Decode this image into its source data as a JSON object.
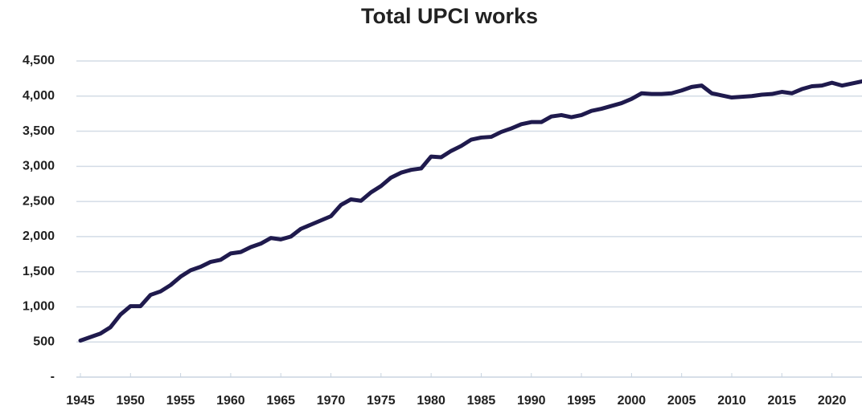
{
  "chart_data": {
    "type": "line",
    "title": "Total UPCI works",
    "x": [
      1945,
      1946,
      1947,
      1948,
      1949,
      1950,
      1951,
      1952,
      1953,
      1954,
      1955,
      1956,
      1957,
      1958,
      1959,
      1960,
      1961,
      1962,
      1963,
      1964,
      1965,
      1966,
      1967,
      1968,
      1969,
      1970,
      1971,
      1972,
      1973,
      1974,
      1975,
      1976,
      1977,
      1978,
      1979,
      1980,
      1981,
      1982,
      1983,
      1984,
      1985,
      1986,
      1987,
      1988,
      1989,
      1990,
      1991,
      1992,
      1993,
      1994,
      1995,
      1996,
      1997,
      1998,
      1999,
      2000,
      2001,
      2002,
      2003,
      2004,
      2005,
      2006,
      2007,
      2008,
      2009,
      2010,
      2011,
      2012,
      2013,
      2014,
      2015,
      2016,
      2017,
      2018,
      2019,
      2020,
      2021,
      2022,
      2023
    ],
    "series": [
      {
        "name": "Total UPCI works",
        "color": "#1f1a4d",
        "values": [
          520,
          570,
          620,
          710,
          890,
          1010,
          1010,
          1170,
          1220,
          1310,
          1430,
          1520,
          1570,
          1640,
          1670,
          1760,
          1780,
          1850,
          1900,
          1980,
          1960,
          2000,
          2110,
          2170,
          2230,
          2290,
          2450,
          2530,
          2510,
          2630,
          2720,
          2840,
          2910,
          2950,
          2970,
          3140,
          3130,
          3220,
          3290,
          3380,
          3410,
          3420,
          3490,
          3540,
          3600,
          3630,
          3630,
          3710,
          3730,
          3700,
          3730,
          3790,
          3820,
          3860,
          3900,
          3960,
          4040,
          4030,
          4030,
          4040,
          4080,
          4130,
          4150,
          4040,
          4010,
          3980,
          3990,
          4000,
          4020,
          4030,
          4060,
          4040,
          4100,
          4140,
          4150,
          4190,
          4150,
          4180,
          4210
        ]
      }
    ],
    "xlim": [
      1944.6,
      2023
    ],
    "xticks": [
      1945,
      1950,
      1955,
      1960,
      1965,
      1970,
      1975,
      1980,
      1985,
      1990,
      1995,
      2000,
      2005,
      2010,
      2015,
      2020
    ],
    "ylim": [
      0,
      4500
    ],
    "yticks": [
      {
        "value": 0,
        "label": "-"
      },
      500,
      {
        "value": 1000,
        "label": "1,000"
      },
      {
        "value": 1500,
        "label": "1,500"
      },
      {
        "value": 2000,
        "label": "2,000"
      },
      {
        "value": 2500,
        "label": "2,500"
      },
      {
        "value": 3000,
        "label": "3,000"
      },
      {
        "value": 3500,
        "label": "3,500"
      },
      {
        "value": 4000,
        "label": "4,000"
      },
      {
        "value": 4500,
        "label": "4,500"
      }
    ],
    "grid": true
  }
}
